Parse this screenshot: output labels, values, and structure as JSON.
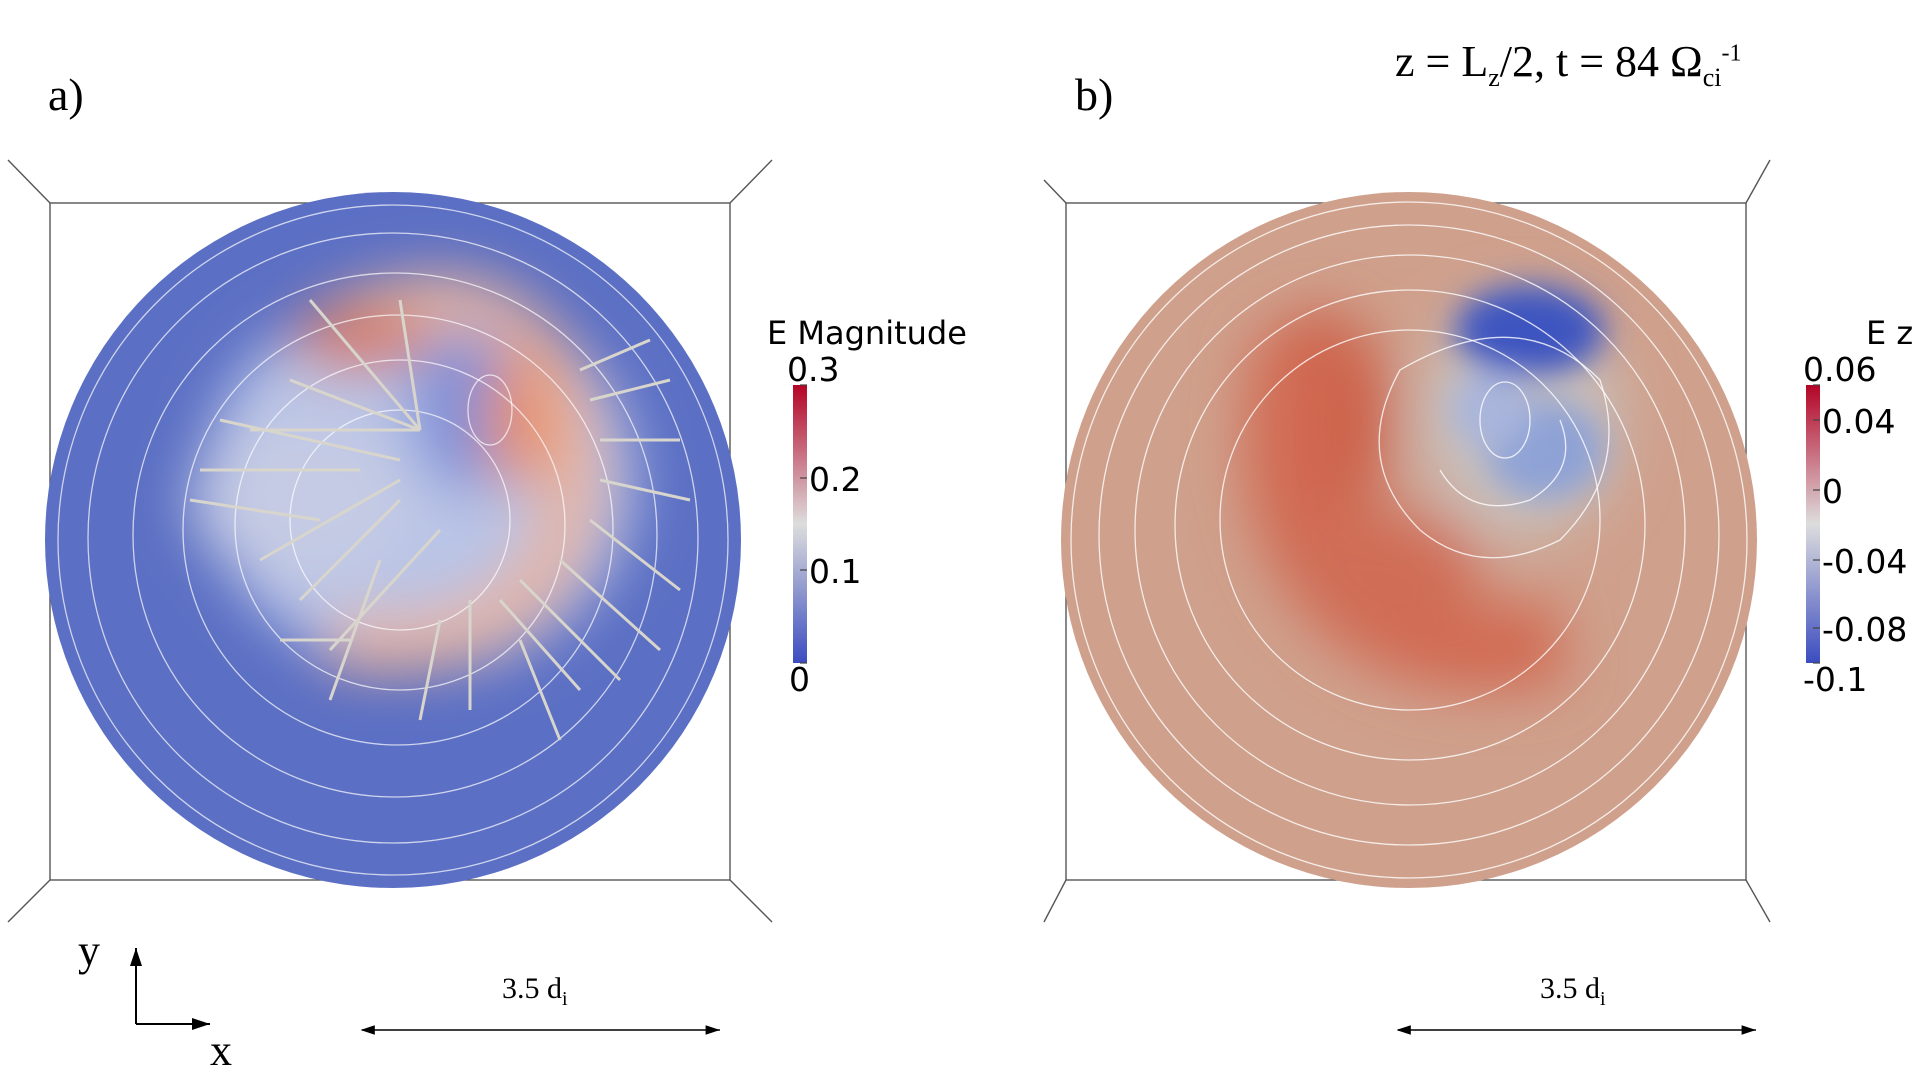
{
  "header": {
    "text_parts": [
      "z = L",
      "z",
      "/2, t = 84 Ω",
      "ci",
      "-1"
    ]
  },
  "panels": [
    {
      "label": "a)",
      "colorbar": {
        "title": "E Magnitude",
        "ticks": [
          "0.3",
          "0.2",
          "0.1",
          "0"
        ],
        "range": [
          0,
          0.3
        ],
        "colors": [
          "#3b4cc0",
          "#dddddd",
          "#b40426"
        ]
      },
      "scale_bar": {
        "value": "3.5 d",
        "subscript": "i"
      }
    },
    {
      "label": "b)",
      "colorbar": {
        "title": "E z",
        "ticks": [
          "0.06",
          "0.04",
          "0",
          "-0.04",
          "-0.08",
          "-0.1"
        ],
        "range": [
          -0.1,
          0.06
        ],
        "colors": [
          "#3b4cc0",
          "#dddddd",
          "#b40426"
        ]
      },
      "scale_bar": {
        "value": "3.5 d",
        "subscript": "i"
      }
    }
  ],
  "axes_triad": {
    "y_label": "y",
    "x_label": "x"
  }
}
